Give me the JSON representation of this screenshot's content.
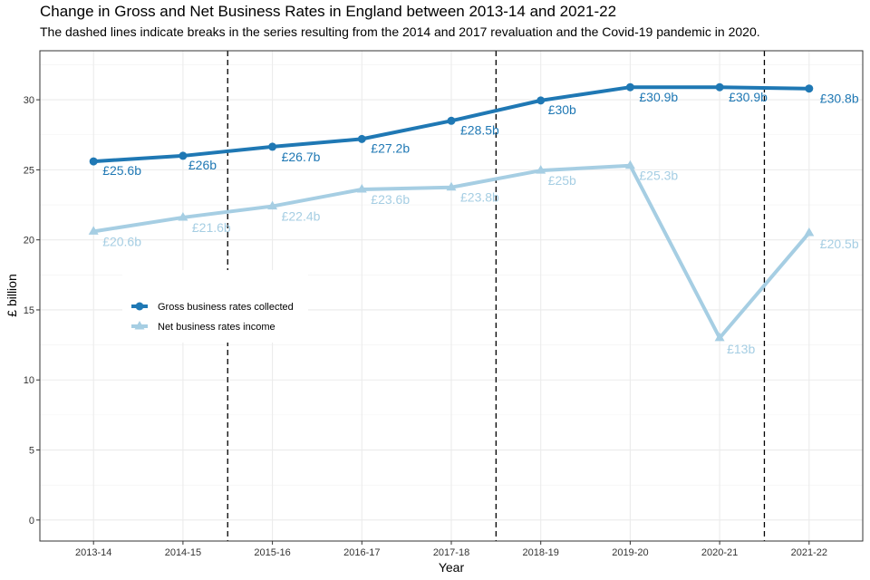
{
  "chart_data": {
    "type": "line",
    "title": "Change in Gross and Net Business Rates in England between 2013-14 and 2021-22",
    "subtitle": "The dashed lines indicate breaks in the series resulting from the 2014 and 2017 revaluation and the Covid-19 pandemic in 2020.",
    "xlabel": "Year",
    "ylabel": "£ billion",
    "categories": [
      "2013-14",
      "2014-15",
      "2015-16",
      "2016-17",
      "2017-18",
      "2018-19",
      "2019-20",
      "2020-21",
      "2021-22"
    ],
    "ylim": [
      -1.5,
      33.5
    ],
    "yticks": [
      0,
      5,
      10,
      15,
      20,
      25,
      30
    ],
    "grid": true,
    "break_positions": [
      1.5,
      4.5,
      7.5
    ],
    "legend_position": "left",
    "series": [
      {
        "name": "Gross business rates collected",
        "color": "#1f78b4",
        "marker": "circle",
        "values": [
          25.6,
          26.0,
          26.65,
          27.2,
          28.5,
          29.95,
          30.9,
          30.9,
          30.8
        ],
        "labels": [
          "£25.6b",
          "£26b",
          "£26.7b",
          "£27.2b",
          "£28.5b",
          "£30b",
          "£30.9b",
          "£30.9b",
          "£30.8b"
        ]
      },
      {
        "name": "Net business rates income",
        "color": "#a6cee3",
        "marker": "triangle",
        "values": [
          20.6,
          21.6,
          22.4,
          23.6,
          23.75,
          24.95,
          25.3,
          13.0,
          20.5
        ],
        "labels": [
          "£20.6b",
          "£21.6b",
          "£22.4b",
          "£23.6b",
          "£23.8b",
          "£25b",
          "£25.3b",
          "£13b",
          "£20.5b"
        ]
      }
    ]
  }
}
